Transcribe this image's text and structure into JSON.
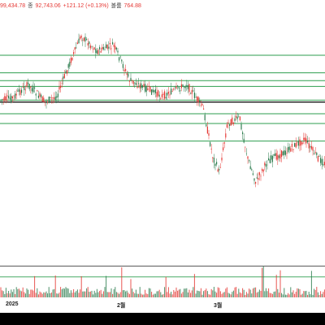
{
  "legend": {
    "open_value": "99,434.78",
    "close_label": "종",
    "close_value": "92,743.06",
    "change": "+121.12 (+0.13%)",
    "volume_label": "볼륨",
    "volume_value": "764.88"
  },
  "chart_data": {
    "type": "candlestick",
    "x_ticks": [
      "2025",
      "2월",
      "3월"
    ],
    "up_color": "#e53935",
    "down_color": "#2e7d4f",
    "level_color": "#2e9e4f",
    "price_levels": [
      0.2,
      0.29,
      0.33,
      0.36,
      0.43,
      0.5,
      0.55,
      0.64
    ],
    "key_level": 0.44,
    "volume_marker_levels": [
      0.6,
      0.8
    ]
  }
}
